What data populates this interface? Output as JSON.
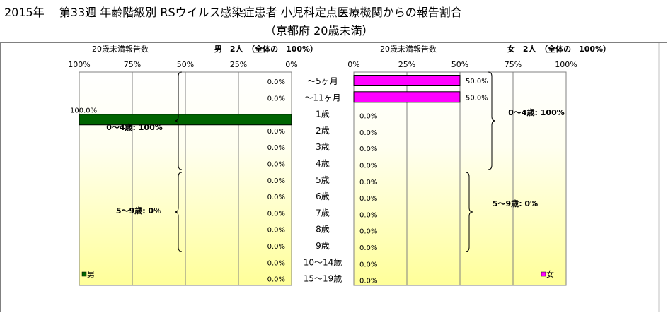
{
  "title_line1": "2015年　 第33週 年齢階級別 RSウイルス感染症患者 小児科定点医療機関からの報告割合",
  "title_line2": "（京都府 20歳未満）",
  "chart_data": {
    "type": "bar",
    "categories": [
      "～5ヶ月",
      "～11ヶ月",
      "1歳",
      "2歳",
      "3歳",
      "4歳",
      "5歳",
      "6歳",
      "7歳",
      "8歳",
      "9歳",
      "10～14歳",
      "15～19歳"
    ],
    "male": {
      "panel_label": "20歳未満報告数",
      "header": "男　2人　（全体の　100%）",
      "legend": "男",
      "color": "#006400",
      "values": [
        0,
        0,
        100,
        0,
        0,
        0,
        0,
        0,
        0,
        0,
        0,
        0,
        0
      ],
      "value_labels": [
        "0.0%",
        "0.0%",
        "100.0%",
        "0.0%",
        "0.0%",
        "0.0%",
        "0.0%",
        "0.0%",
        "0.0%",
        "0.0%",
        "0.0%",
        "0.0%",
        "0.0%"
      ],
      "ticks": [
        "100%",
        "75%",
        "50%",
        "25%",
        "0%"
      ],
      "xlim": [
        0,
        100
      ],
      "group_labels": [
        "0～4歳: 100%",
        "5～9歳: 0%"
      ]
    },
    "female": {
      "panel_label": "20歳未満報告数",
      "header": "女　2人　（全体の　100%）",
      "legend": "女",
      "color": "#ff00ff",
      "values": [
        50,
        50,
        0,
        0,
        0,
        0,
        0,
        0,
        0,
        0,
        0,
        0,
        0
      ],
      "value_labels": [
        "50.0%",
        "50.0%",
        "0.0%",
        "0.0%",
        "0.0%",
        "0.0%",
        "0.0%",
        "0.0%",
        "0.0%",
        "0.0%",
        "0.0%",
        "0.0%",
        "0.0%"
      ],
      "ticks": [
        "0%",
        "25%",
        "50%",
        "75%",
        "100%"
      ],
      "xlim": [
        0,
        100
      ],
      "group_labels": [
        "0～4歳: 100%",
        "5～9歳: 0%"
      ]
    }
  }
}
